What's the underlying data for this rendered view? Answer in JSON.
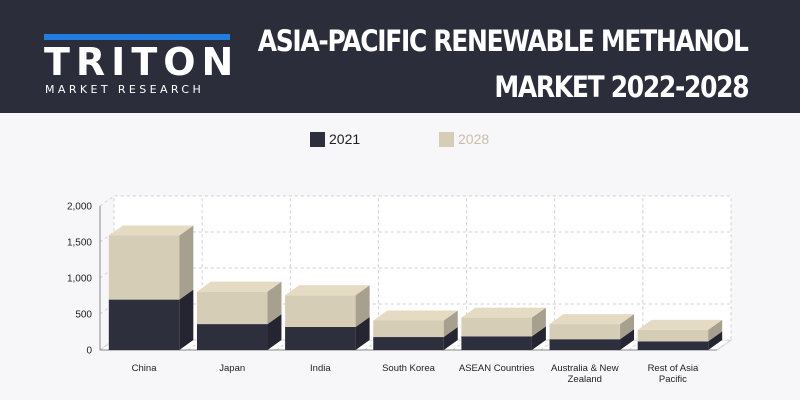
{
  "header": {
    "logo_word": "TRITON",
    "logo_tagline": "MARKET RESEARCH",
    "title_line1": "ASIA-PACIFIC RENEWABLE METHANOL",
    "title_line2": "MARKET  2022-2028"
  },
  "colors": {
    "header_bg": "#2b2d3a",
    "logo_accent": "#1f7fe0",
    "series_2021": "#2e2f3d",
    "series_2028": "#d6cdb6"
  },
  "chart_data": {
    "type": "bar",
    "stacked": true,
    "style": "3d",
    "categories": [
      "China",
      "Japan",
      "India",
      "South Korea",
      "ASEAN Countries",
      "Australia & New Zealand",
      "Rest of Asia Pacific"
    ],
    "series": [
      {
        "name": "2021",
        "color": "#2e2f3d",
        "values": [
          700,
          360,
          320,
          180,
          190,
          150,
          120
        ]
      },
      {
        "name": "2028",
        "color": "#d6cdb6",
        "values": [
          890,
          450,
          440,
          230,
          260,
          210,
          160
        ]
      }
    ],
    "y_ticks": [
      "0",
      "500",
      "1,000",
      "1,500",
      "2,000"
    ],
    "ylim": [
      0,
      2000
    ],
    "grid": true,
    "legend_position": "top"
  }
}
